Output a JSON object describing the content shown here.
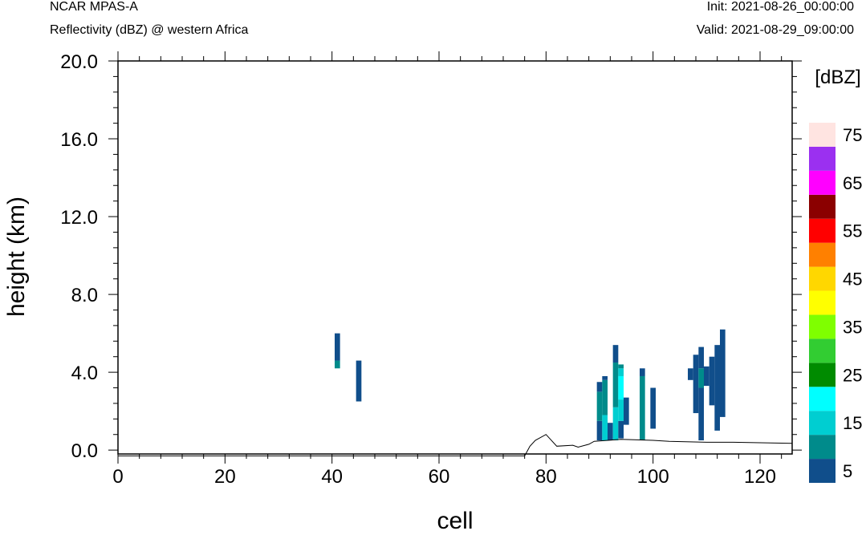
{
  "header": {
    "model": "NCAR MPAS-A",
    "subtitle": "Reflectivity (dBZ) @ western Africa",
    "init": "Init: 2021-08-26_00:00:00",
    "valid": "Valid: 2021-08-29_09:00:00"
  },
  "chart_data": {
    "type": "heatmap",
    "xlabel": "cell",
    "ylabel": "height (km)",
    "xlim": [
      0,
      126
    ],
    "ylim": [
      -0.2,
      20.0
    ],
    "x_ticks": [
      0,
      20,
      40,
      60,
      80,
      100,
      120
    ],
    "x_tick_labels": [
      "0",
      "20",
      "40",
      "60",
      "80",
      "100",
      "120"
    ],
    "y_ticks": [
      0,
      4,
      8,
      12,
      16,
      20
    ],
    "y_tick_labels": [
      "0.0",
      "4.0",
      "8.0",
      "12.0",
      "16.0",
      "20.0"
    ],
    "colorbar": {
      "unit_label": "[dBZ]",
      "colors": [
        "#104e8b",
        "#008b8b",
        "#00ced1",
        "#00ffff",
        "#008b00",
        "#32cd32",
        "#7fff00",
        "#ffff00",
        "#ffd700",
        "#ff8000",
        "#ff0000",
        "#8b0000",
        "#ff00ff",
        "#9b30f0",
        "#ffe4e1"
      ],
      "labels": [
        "5",
        "15",
        "25",
        "35",
        "45",
        "55",
        "65",
        "75"
      ]
    },
    "terrain": [
      [
        0,
        -0.3
      ],
      [
        76,
        -0.3
      ],
      [
        77,
        0.2
      ],
      [
        78,
        0.5
      ],
      [
        80,
        0.8
      ],
      [
        82,
        0.2
      ],
      [
        85,
        0.25
      ],
      [
        86,
        0.15
      ],
      [
        88,
        0.3
      ],
      [
        89,
        0.45
      ],
      [
        94,
        0.55
      ],
      [
        100,
        0.5
      ],
      [
        103,
        0.45
      ],
      [
        110,
        0.4
      ],
      [
        115,
        0.4
      ],
      [
        126,
        0.35
      ]
    ],
    "cells": [
      {
        "x": 41,
        "segments": [
          [
            4.2,
            4.6,
            1
          ],
          [
            4.6,
            6.0,
            0
          ]
        ]
      },
      {
        "x": 45,
        "segments": [
          [
            2.5,
            4.6,
            0
          ]
        ]
      },
      {
        "x": 90,
        "segments": [
          [
            0.5,
            1.5,
            0
          ],
          [
            1.5,
            3.0,
            1
          ],
          [
            3.0,
            3.5,
            0
          ]
        ]
      },
      {
        "x": 91,
        "segments": [
          [
            0.5,
            1.8,
            2
          ],
          [
            1.8,
            3.6,
            1
          ],
          [
            3.6,
            3.8,
            0
          ]
        ]
      },
      {
        "x": 92,
        "segments": [
          [
            0.5,
            1.4,
            0
          ]
        ]
      },
      {
        "x": 93,
        "segments": [
          [
            0.5,
            2.2,
            2
          ],
          [
            2.2,
            4.5,
            1
          ],
          [
            4.5,
            5.4,
            0
          ]
        ]
      },
      {
        "x": 94,
        "segments": [
          [
            0.6,
            1.5,
            0
          ],
          [
            1.5,
            2.6,
            2
          ],
          [
            2.6,
            3.8,
            3
          ],
          [
            3.8,
            4.2,
            2
          ],
          [
            4.2,
            4.4,
            1
          ]
        ]
      },
      {
        "x": 95,
        "segments": [
          [
            1.3,
            2.7,
            0
          ]
        ]
      },
      {
        "x": 98,
        "segments": [
          [
            0.5,
            3.8,
            1
          ],
          [
            3.8,
            4.2,
            0
          ]
        ]
      },
      {
        "x": 100,
        "segments": [
          [
            1.1,
            3.2,
            0
          ]
        ]
      },
      {
        "x": 107,
        "segments": [
          [
            3.6,
            4.2,
            0
          ]
        ]
      },
      {
        "x": 108,
        "segments": [
          [
            1.9,
            4.9,
            0
          ]
        ]
      },
      {
        "x": 109,
        "segments": [
          [
            0.5,
            3.2,
            0
          ],
          [
            3.2,
            4.2,
            1
          ],
          [
            4.2,
            5.3,
            0
          ]
        ]
      },
      {
        "x": 110,
        "segments": [
          [
            3.3,
            4.3,
            0
          ]
        ]
      },
      {
        "x": 111,
        "segments": [
          [
            2.3,
            4.8,
            0
          ]
        ]
      },
      {
        "x": 112,
        "segments": [
          [
            1.0,
            5.4,
            0
          ]
        ]
      },
      {
        "x": 113,
        "segments": [
          [
            1.7,
            6.2,
            0
          ]
        ]
      }
    ]
  }
}
